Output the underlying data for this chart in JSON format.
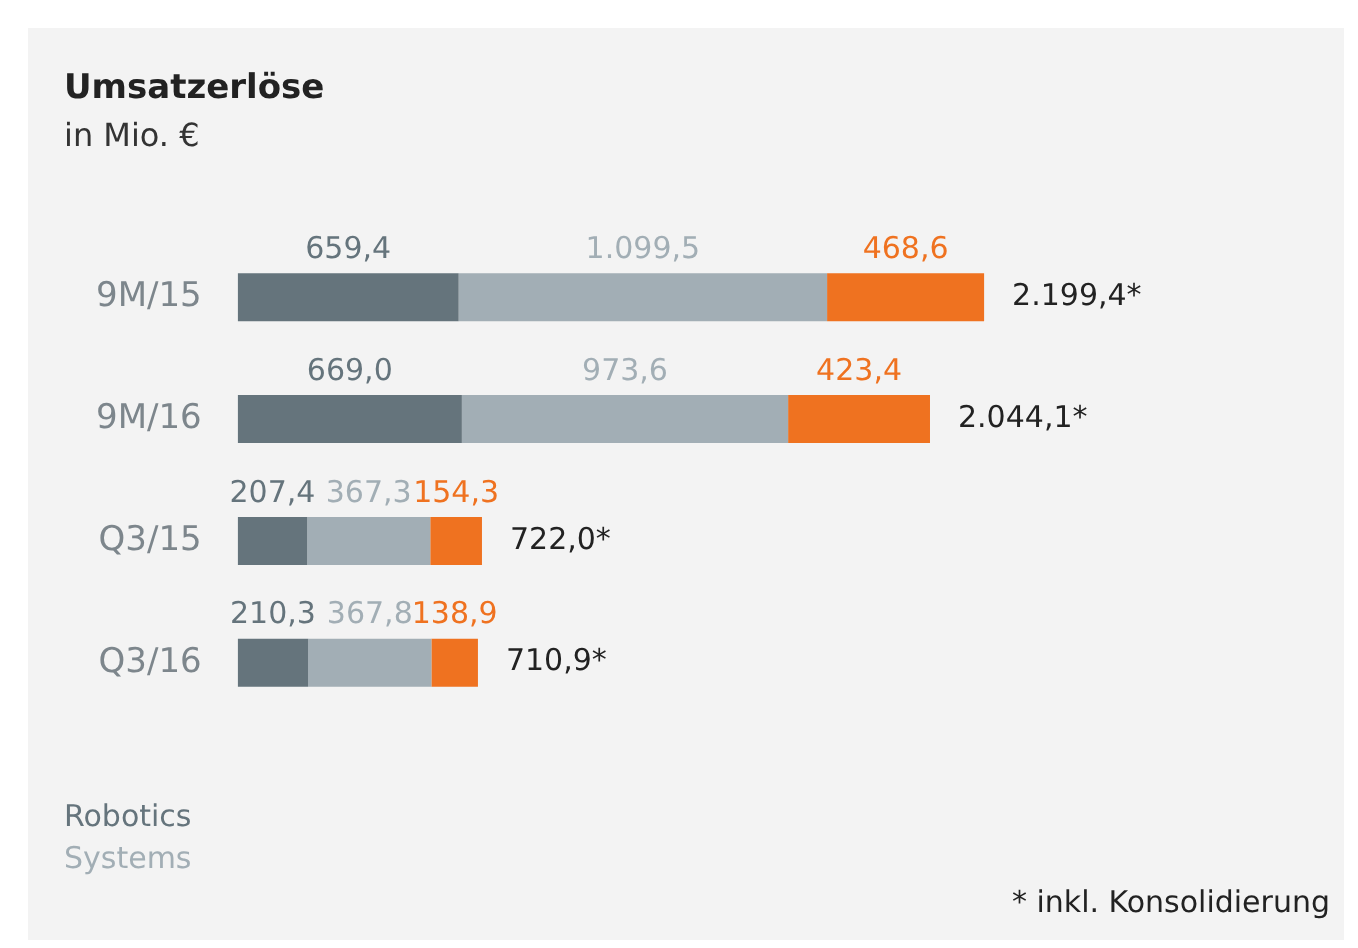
{
  "chart_data": {
    "type": "bar",
    "orientation": "horizontal",
    "stacked": true,
    "title": "Umsatzerlöse",
    "subtitle": "in Mio. €",
    "categories": [
      "9M/15",
      "9M/16",
      "Q3/15",
      "Q3/16"
    ],
    "series": [
      {
        "name": "Robotics",
        "color": "#65747c",
        "values": [
          659.4,
          669.0,
          207.4,
          210.3
        ],
        "value_labels": [
          "659,4",
          "669,0",
          "207,4",
          "210,3"
        ]
      },
      {
        "name": "Systems",
        "color": "#a2aeb5",
        "values": [
          1099.5,
          973.6,
          367.3,
          367.8
        ],
        "value_labels": [
          "1.099,5",
          "973,6",
          "367,3",
          "367,8"
        ]
      },
      {
        "color": "#ef7220",
        "values": [
          468.6,
          423.4,
          154.3,
          138.9
        ],
        "value_labels": [
          "468,6",
          "423,4",
          "154,3",
          "138,9"
        ]
      }
    ],
    "legend": "bottom left",
    "grid": false,
    "annotations": [
      {
        "text": "2.199,4*",
        "x": 2227.5,
        "y": "9M/15"
      },
      {
        "text": "2.044,1*",
        "x": 2066.0,
        "y": "9M/16"
      },
      {
        "text": "722,0*",
        "x": 729.0,
        "y": "Q3/15"
      },
      {
        "text": "710,9*",
        "x": 717.0,
        "y": "Q3/16"
      },
      "* inkl. Konsolidierung"
    ]
  }
}
